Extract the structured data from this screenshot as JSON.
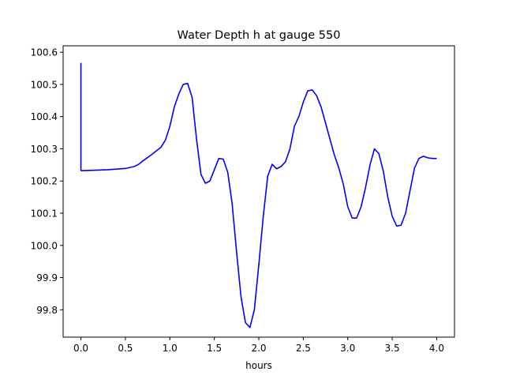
{
  "chart_data": {
    "type": "line",
    "title": "Water Depth h at gauge 550",
    "xlabel": "hours",
    "ylabel": "",
    "xlim": [
      -0.2,
      4.2
    ],
    "ylim": [
      99.715,
      100.62
    ],
    "grid": false,
    "x_ticks": [
      0.0,
      0.5,
      1.0,
      1.5,
      2.0,
      2.5,
      3.0,
      3.5,
      4.0
    ],
    "x_tick_labels": [
      "0.0",
      "0.5",
      "1.0",
      "1.5",
      "2.0",
      "2.5",
      "3.0",
      "3.5",
      "4.0"
    ],
    "y_ticks": [
      99.8,
      99.9,
      100.0,
      100.1,
      100.2,
      100.3,
      100.4,
      100.5,
      100.6
    ],
    "y_tick_labels": [
      "99.8",
      "99.9",
      "100.0",
      "100.1",
      "100.2",
      "100.3",
      "100.4",
      "100.5",
      "100.6"
    ],
    "series": [
      {
        "color": "#0000ff",
        "x": [
          0.0,
          0.0,
          0.005,
          0.1,
          0.2,
          0.3,
          0.4,
          0.5,
          0.6,
          0.65,
          0.7,
          0.8,
          0.9,
          0.95,
          1.0,
          1.05,
          1.1,
          1.15,
          1.2,
          1.25,
          1.3,
          1.35,
          1.4,
          1.45,
          1.5,
          1.55,
          1.6,
          1.65,
          1.7,
          1.75,
          1.8,
          1.85,
          1.9,
          1.95,
          2.0,
          2.05,
          2.1,
          2.15,
          2.2,
          2.25,
          2.3,
          2.35,
          2.4,
          2.45,
          2.5,
          2.55,
          2.6,
          2.65,
          2.7,
          2.75,
          2.8,
          2.85,
          2.9,
          2.95,
          3.0,
          3.05,
          3.1,
          3.15,
          3.2,
          3.25,
          3.3,
          3.35,
          3.4,
          3.45,
          3.5,
          3.55,
          3.6,
          3.65,
          3.7,
          3.75,
          3.8,
          3.85,
          3.9,
          3.95,
          4.0
        ],
        "y": [
          100.567,
          100.233,
          100.232,
          100.233,
          100.234,
          100.235,
          100.237,
          100.239,
          100.245,
          100.252,
          100.263,
          100.283,
          100.305,
          100.327,
          100.37,
          100.43,
          100.47,
          100.5,
          100.503,
          100.46,
          100.33,
          100.22,
          100.193,
          100.2,
          100.235,
          100.27,
          100.268,
          100.228,
          100.13,
          99.98,
          99.84,
          99.76,
          99.745,
          99.8,
          99.94,
          100.09,
          100.215,
          100.252,
          100.238,
          100.245,
          100.26,
          100.3,
          100.37,
          100.4,
          100.445,
          100.48,
          100.483,
          100.465,
          100.43,
          100.38,
          100.33,
          100.28,
          100.24,
          100.19,
          100.12,
          100.085,
          100.085,
          100.12,
          100.18,
          100.25,
          100.3,
          100.285,
          100.23,
          100.15,
          100.09,
          100.06,
          100.063,
          100.1,
          100.17,
          100.24,
          100.27,
          100.277,
          100.272,
          100.27,
          100.27
        ]
      }
    ]
  }
}
